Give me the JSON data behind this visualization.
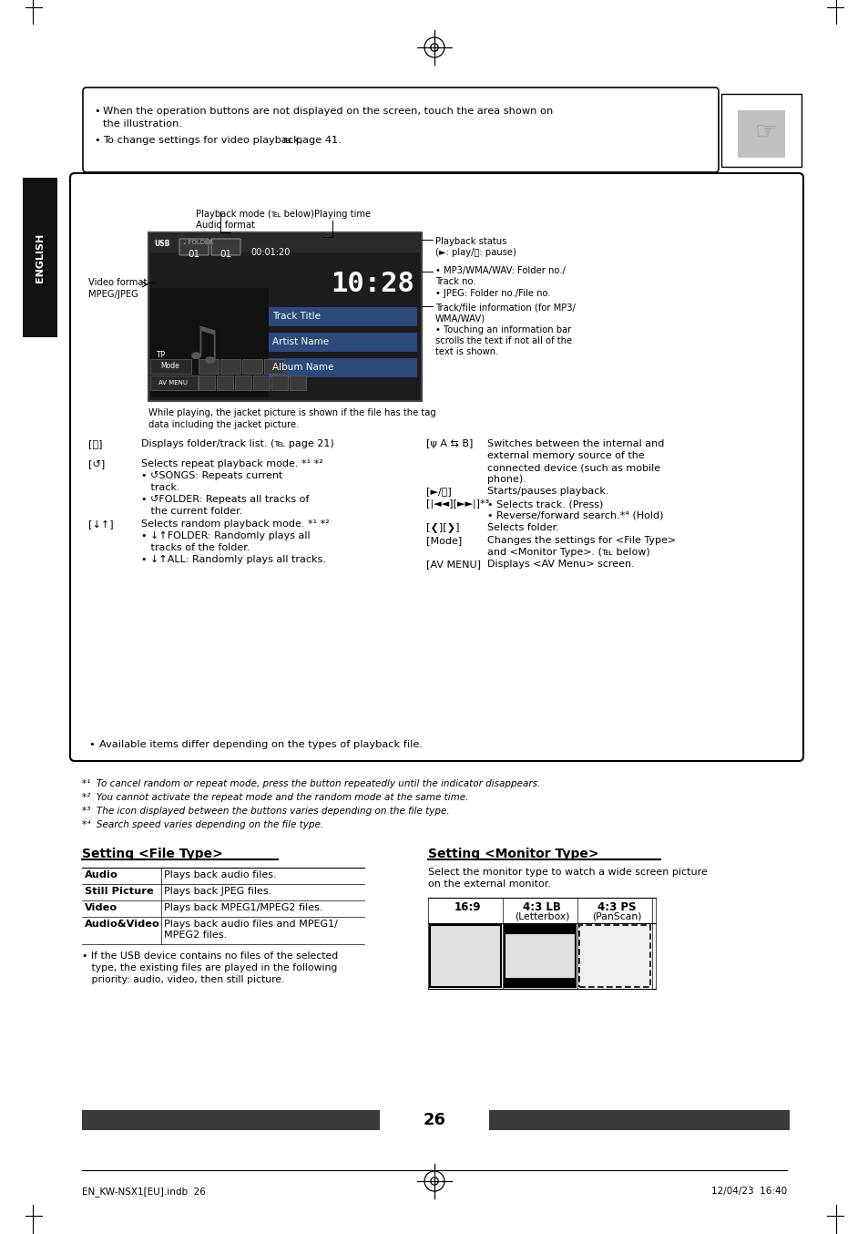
{
  "page_num": "26",
  "bg_color": "#ffffff",
  "text_color": "#000000",
  "footer_left": "EN_KW-NSX1[EU].indb  26",
  "footer_right": "12/04/23  16:40",
  "english_tab": "ENGLISH",
  "bullet1_line1": "When the operation buttons are not displayed on the screen, touch the area shown on",
  "bullet1_line2": "the illustration.",
  "bullet2_line1": "To change settings for video playback,",
  "bullet2_ref": "℡ page 41.",
  "screen_time": "10:28",
  "screen_time_small": "00:01:20",
  "screen_folder": "01",
  "screen_track": "01",
  "track_labels": [
    "Track Title",
    "Artist Name",
    "Album Name"
  ],
  "label_playback_mode": "Playback mode (℡ below)",
  "label_audio_format": "Audio format",
  "label_playing_time": "Playing time",
  "label_playback_status": "Playback status",
  "label_play_pause": "(►: play/⏸: pause)",
  "label_video_format_line1": "Video format—",
  "label_video_format_line2": "MPEG/JPEG",
  "label_mp3_line1": "• MP3/WMA/WAV: Folder no./",
  "label_mp3_line2": "Track no.",
  "label_jpeg": "• JPEG: Folder no./File no.",
  "label_track_info_line1": "Track/file information (for MP3/",
  "label_track_info_line2": "WMA/WAV)",
  "label_touch_line1": "• Touching an information bar",
  "label_touch_line2": "scrolls the text if not all of the",
  "label_touch_line3": "text is shown.",
  "caption_line1": "While playing, the jacket picture is shown if the file has the tag",
  "caption_line2": "data including the jacket picture.",
  "controls_left": [
    {
      "sym": "[⌕]",
      "lines": [
        "Displays folder/track list. (℡ page 21)"
      ]
    },
    {
      "sym": "[↺]",
      "lines": [
        "Selects repeat playback mode. *¹ *²",
        "• ↺SONGS: Repeats current",
        "   track.",
        "• ↺FOLDER: Repeats all tracks of",
        "   the current folder."
      ]
    },
    {
      "sym": "[↓↑]",
      "lines": [
        "Selects random playback mode. *¹ *²",
        "• ↓↑FOLDER: Randomly plays all",
        "   tracks of the folder.",
        "• ↓↑ALL: Randomly plays all tracks."
      ]
    }
  ],
  "controls_right": [
    {
      "sym": "[ψ A ⇆ B]",
      "lines": [
        "Switches between the internal and",
        "external memory source of the",
        "connected device (such as mobile",
        "phone)."
      ]
    },
    {
      "sym": "[►/⏸]",
      "lines": [
        "Starts/pauses playback."
      ]
    },
    {
      "sym": "[|◄◄][►►|]*³",
      "lines": [
        "• Selects track. (Press)",
        "• Reverse/forward search.*⁴ (Hold)"
      ]
    },
    {
      "sym": "[❮][❯]",
      "lines": [
        "Selects folder."
      ]
    },
    {
      "sym": "[Mode]",
      "lines": [
        "Changes the settings for <File Type>",
        "and <Monitor Type>. (℡ below)"
      ]
    },
    {
      "sym": "[AV MENU]",
      "lines": [
        "Displays <AV Menu> screen."
      ]
    }
  ],
  "available_note": "Available items differ depending on the types of playback file.",
  "footnotes": [
    "*¹  To cancel random or repeat mode, press the button repeatedly until the indicator disappears.",
    "*²  You cannot activate the repeat mode and the random mode at the same time.",
    "*³  The icon displayed between the buttons varies depending on the file type.",
    "*⁴  Search speed varies depending on the file type."
  ],
  "file_type_title": "Setting <File Type>",
  "file_type_rows": [
    {
      "label": "Audio",
      "desc": [
        "Plays back audio files."
      ]
    },
    {
      "label": "Still Picture",
      "desc": [
        "Plays back JPEG files."
      ]
    },
    {
      "label": "Video",
      "desc": [
        "Plays back MPEG1/MPEG2 files."
      ]
    },
    {
      "label": "Audio&Video",
      "desc": [
        "Plays back audio files and MPEG1/",
        "MPEG2 files."
      ]
    }
  ],
  "file_type_note": [
    "• If the USB device contains no files of the selected",
    "   type, the existing files are played in the following",
    "   priority: audio, video, then still picture."
  ],
  "monitor_type_title": "Setting <Monitor Type>",
  "monitor_type_desc": [
    "Select the monitor type to watch a wide screen picture",
    "on the external monitor."
  ],
  "monitor_cols": [
    "16:9",
    "4:3 LB",
    "(Letterbox)",
    "4:3 PS",
    "(PanScan)"
  ],
  "dark_bar_color": "#3a3a3a",
  "screen_color": "#1c1c1c",
  "tab_color": "#111111",
  "track_title_color": "#3a6ea8",
  "track_artist_color": "#3a6ea8",
  "track_album_color": "#3a6ea8"
}
